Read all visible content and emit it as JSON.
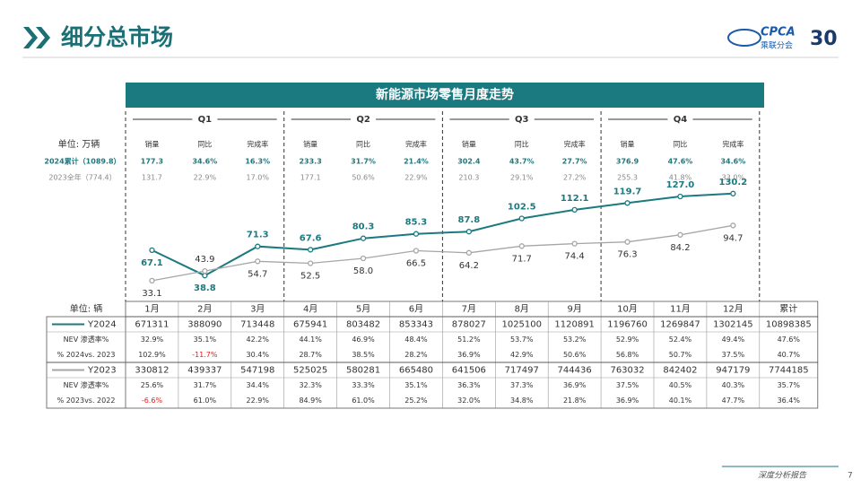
{
  "header": {
    "title": "细分总市场",
    "logo": "CPCA",
    "logo_sub": "乘联分会",
    "anniversary": "30"
  },
  "chart_data": {
    "type": "line",
    "title": "新能源市场零售月度走势",
    "categories": [
      "1月",
      "2月",
      "3月",
      "4月",
      "5月",
      "6月",
      "7月",
      "8月",
      "9月",
      "10月",
      "11月",
      "12月"
    ],
    "series": [
      {
        "name": "Y2024",
        "color": "#1b7a80",
        "values": [
          67.1,
          38.8,
          71.3,
          67.6,
          80.3,
          85.3,
          87.8,
          102.5,
          112.1,
          119.7,
          127.0,
          130.2
        ],
        "value_labels": [
          "67.1",
          "38.8",
          "71.3",
          "67.6",
          "80.3",
          "85.3",
          "87.8",
          "102.5",
          "112.1",
          "119.7",
          "127.0",
          "130.2"
        ]
      },
      {
        "name": "Y2023",
        "color": "#a6a6a6",
        "values": [
          33.1,
          43.9,
          54.7,
          52.5,
          58.0,
          66.5,
          64.2,
          71.7,
          74.4,
          76.3,
          84.2,
          94.7
        ],
        "value_labels": [
          "33.1",
          "43.9",
          "54.7",
          "52.5",
          "58.0",
          "66.5",
          "64.2",
          "71.7",
          "74.4",
          "76.3",
          "84.2",
          "94.7"
        ]
      }
    ]
  },
  "summary": {
    "unit": "单位: 万辆",
    "quarters": [
      "Q1",
      "Q2",
      "Q3",
      "Q4"
    ],
    "columns": [
      "销量",
      "同比",
      "完成率",
      "销量",
      "同比",
      "完成率",
      "销量",
      "同比",
      "完成率",
      "销量",
      "同比",
      "完成率"
    ],
    "rows": [
      {
        "label": "2024累计（1089.8）",
        "cells": [
          "177.3",
          "34.6%",
          "16.3%",
          "233.3",
          "31.7%",
          "21.4%",
          "302.4",
          "43.7%",
          "27.7%",
          "376.9",
          "47.6%",
          "34.6%"
        ]
      },
      {
        "label": "2023全年（774.4）",
        "cells": [
          "131.7",
          "22.9%",
          "17.0%",
          "177.1",
          "50.6%",
          "22.9%",
          "210.3",
          "29.1%",
          "27.2%",
          "255.3",
          "41.8%",
          "33.0%"
        ]
      }
    ]
  },
  "table": {
    "unit": "单位: 辆",
    "total": "累计",
    "groups": [
      {
        "cells": [
          671311,
          388090,
          713448,
          675941,
          803482,
          853343,
          878027,
          1025100,
          1120891,
          1196760,
          1269847,
          1302145,
          10898385
        ],
        "rows": [
          {
            "label": "NEV 渗透率%",
            "cells": [
              "32.9%",
              "35.1%",
              "42.2%",
              "44.1%",
              "46.9%",
              "48.4%",
              "51.2%",
              "53.7%",
              "53.2%",
              "52.9%",
              "52.4%",
              "49.4%",
              "47.6%"
            ]
          },
          {
            "label": "% 2024vs. 2023",
            "cells": [
              "102.9%",
              "-11.7%",
              "30.4%",
              "28.7%",
              "38.5%",
              "28.2%",
              "36.9%",
              "42.9%",
              "50.6%",
              "56.8%",
              "50.7%",
              "37.5%",
              "40.7%"
            ]
          }
        ]
      },
      {
        "cells": [
          330812,
          439337,
          547198,
          525025,
          580281,
          665480,
          641506,
          717497,
          744436,
          763032,
          842402,
          947179,
          7744185
        ],
        "rows": [
          {
            "label": "NEV 渗透率%",
            "cells": [
              "25.6%",
              "31.7%",
              "34.4%",
              "32.3%",
              "33.3%",
              "35.1%",
              "36.3%",
              "37.3%",
              "36.9%",
              "37.5%",
              "40.5%",
              "40.3%",
              "35.7%"
            ]
          },
          {
            "label": "% 2023vs. 2022",
            "cells": [
              "-6.6%",
              "61.0%",
              "22.9%",
              "84.9%",
              "61.0%",
              "25.2%",
              "32.0%",
              "34.8%",
              "21.8%",
              "36.9%",
              "40.1%",
              "47.7%",
              "36.4%"
            ]
          }
        ]
      }
    ]
  },
  "footer": {
    "text": "深度分析报告",
    "page": "7"
  }
}
